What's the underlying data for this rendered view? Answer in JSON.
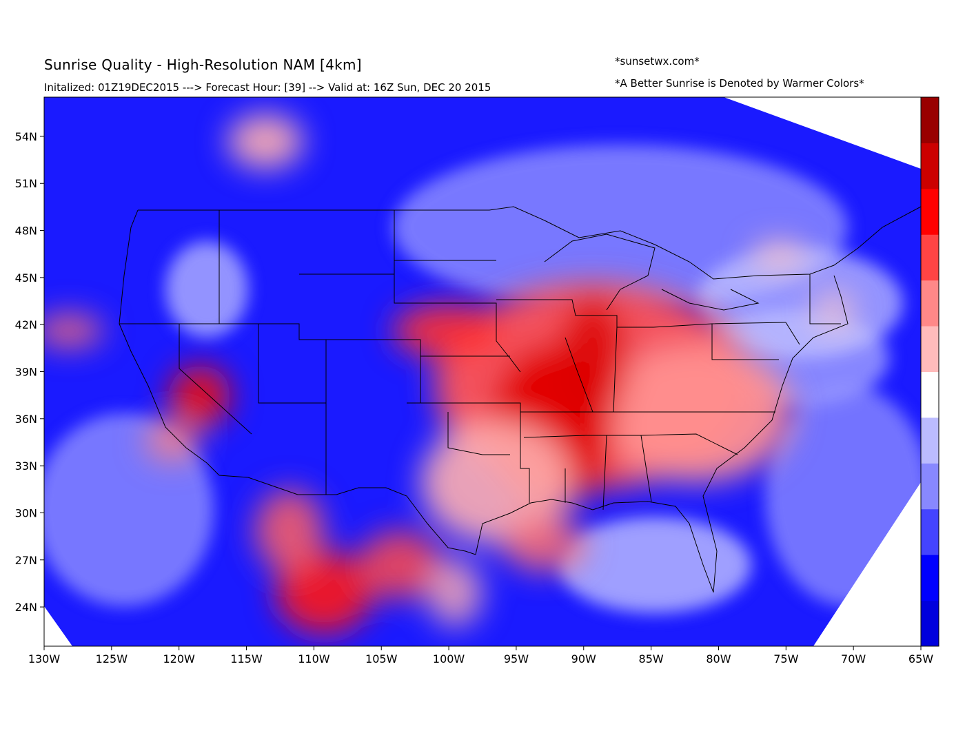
{
  "header": {
    "title": "Sunrise Quality - High-Resolution NAM [4km]",
    "subtitle": "Initalized: 01Z19DEC2015 ---> Forecast Hour: [39] --> Valid at: 16Z Sun, DEC 20 2015",
    "credit": "*sunsetwx.com*",
    "note": "*A Better Sunrise is Denoted by Warmer Colors*"
  },
  "map": {
    "projection": "lat-lon",
    "lon_range": [
      -130,
      -65
    ],
    "lat_range": [
      21.5,
      56.5
    ],
    "lon_ticks": [
      "130W",
      "125W",
      "120W",
      "115W",
      "110W",
      "105W",
      "100W",
      "95W",
      "90W",
      "85W",
      "80W",
      "75W",
      "70W",
      "65W"
    ],
    "lat_ticks": [
      "24N",
      "27N",
      "30N",
      "33N",
      "36N",
      "39N",
      "42N",
      "45N",
      "48N",
      "51N",
      "54N"
    ],
    "lon_tick_values": [
      -130,
      -125,
      -120,
      -115,
      -110,
      -105,
      -100,
      -95,
      -90,
      -85,
      -80,
      -75,
      -70,
      -65
    ],
    "lat_tick_values": [
      24,
      27,
      30,
      33,
      36,
      39,
      42,
      45,
      48,
      51,
      54
    ],
    "colorbar": {
      "orientation": "vertical",
      "colors": [
        "#0000dd",
        "#0000ff",
        "#4444ff",
        "#8888ff",
        "#bbbbff",
        "#ffffff",
        "#ffbbbb",
        "#ff8888",
        "#ff4444",
        "#ff0000",
        "#cc0000",
        "#990000"
      ]
    },
    "colors": {
      "cool": "#0000ff",
      "warm": "#ff0000",
      "neutral": "#ffffff"
    }
  }
}
